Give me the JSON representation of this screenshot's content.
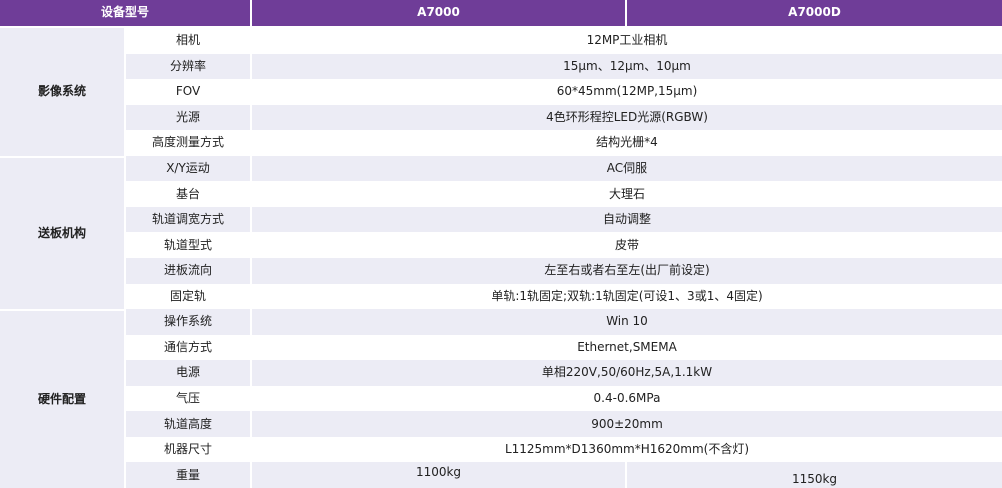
{
  "table": {
    "header": {
      "device_model": "设备型号",
      "model_a": "A7000",
      "model_b": "A7000D"
    },
    "groups": [
      {
        "name": "影像系统",
        "rows": [
          {
            "label": "相机",
            "value": "12MP工业相机"
          },
          {
            "label": "分辨率",
            "value": "15μm、12μm、10μm"
          },
          {
            "label": "FOV",
            "value": "60*45mm(12MP,15μm)"
          },
          {
            "label": "光源",
            "value": "4色环形程控LED光源(RGBW)"
          },
          {
            "label": "高度测量方式",
            "value": "结构光栅*4"
          }
        ]
      },
      {
        "name": "送板机构",
        "rows": [
          {
            "label": "X/Y运动",
            "value": "AC伺服"
          },
          {
            "label": "基台",
            "value": "大理石"
          },
          {
            "label": "轨道调宽方式",
            "value": "自动调整"
          },
          {
            "label": "轨道型式",
            "value": "皮带"
          },
          {
            "label": "进板流向",
            "value": "左至右或者右至左(出厂前设定)"
          },
          {
            "label": "固定轨",
            "value": "单轨:1轨固定;双轨:1轨固定(可设1、3或1、4固定)"
          }
        ]
      },
      {
        "name": "硬件配置",
        "rows": [
          {
            "label": "操作系统",
            "value": "Win 10"
          },
          {
            "label": "通信方式",
            "value": "Ethernet,SMEMA"
          },
          {
            "label": "电源",
            "value": "单相220V,50/60Hz,5A,1.1kW"
          },
          {
            "label": "气压",
            "value": "0.4-0.6MPa"
          },
          {
            "label": "轨道高度",
            "value": "900±20mm"
          },
          {
            "label": "机器尺寸",
            "value": "L1125mm*D1360mm*H1620mm(不含灯)"
          },
          {
            "label": "重量",
            "value_a": "1100kg",
            "value_b": "1150kg"
          }
        ]
      }
    ],
    "colors": {
      "header_bg": "#6F3D98",
      "header_text": "#FFFFFF",
      "row_alt_bg": "#ECECF5",
      "row_bg": "#FFFFFF",
      "text": "#212121"
    }
  }
}
